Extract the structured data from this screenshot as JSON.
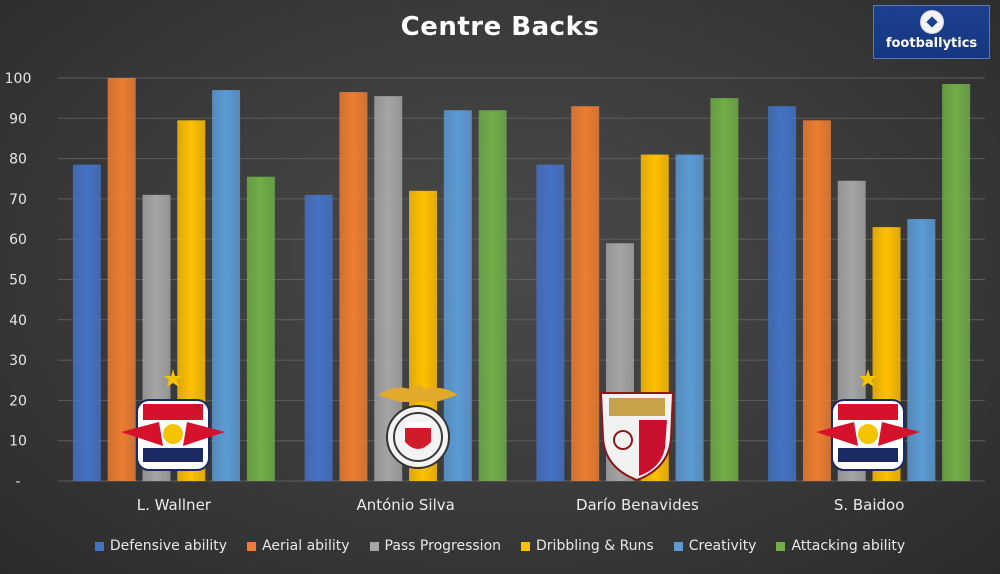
{
  "brand": {
    "name": "footballytics"
  },
  "colors": [
    "#4472C4",
    "#ED7D31",
    "#A5A5A5",
    "#FFC000",
    "#5B9BD5",
    "#70AD47"
  ],
  "chart_data": {
    "type": "bar",
    "title": "Centre Backs",
    "categories": [
      "L. Wallner",
      "António Silva",
      "Darío Benavides",
      "S. Baidoo"
    ],
    "category_badges": [
      "red-bull-salzburg-crest-icon",
      "benfica-crest-icon",
      "sevilla-crest-icon",
      "red-bull-salzburg-crest-icon"
    ],
    "series": [
      {
        "name": "Defensive ability",
        "values": [
          78.5,
          71,
          78.5,
          93
        ]
      },
      {
        "name": "Aerial ability",
        "values": [
          100,
          96.5,
          93,
          89.5
        ]
      },
      {
        "name": "Pass Progression",
        "values": [
          71,
          95.5,
          59,
          74.5
        ]
      },
      {
        "name": "Dribbling & Runs",
        "values": [
          89.5,
          72,
          81,
          63
        ]
      },
      {
        "name": "Creativity",
        "values": [
          97,
          92,
          81,
          65
        ]
      },
      {
        "name": "Attacking ability",
        "values": [
          75.5,
          92,
          95,
          98.5
        ]
      }
    ],
    "ylim": [
      0,
      100
    ],
    "yticks": [
      "-",
      "10",
      "20",
      "30",
      "40",
      "50",
      "60",
      "70",
      "80",
      "90",
      "100"
    ],
    "grid": true,
    "legend": "bottom"
  }
}
